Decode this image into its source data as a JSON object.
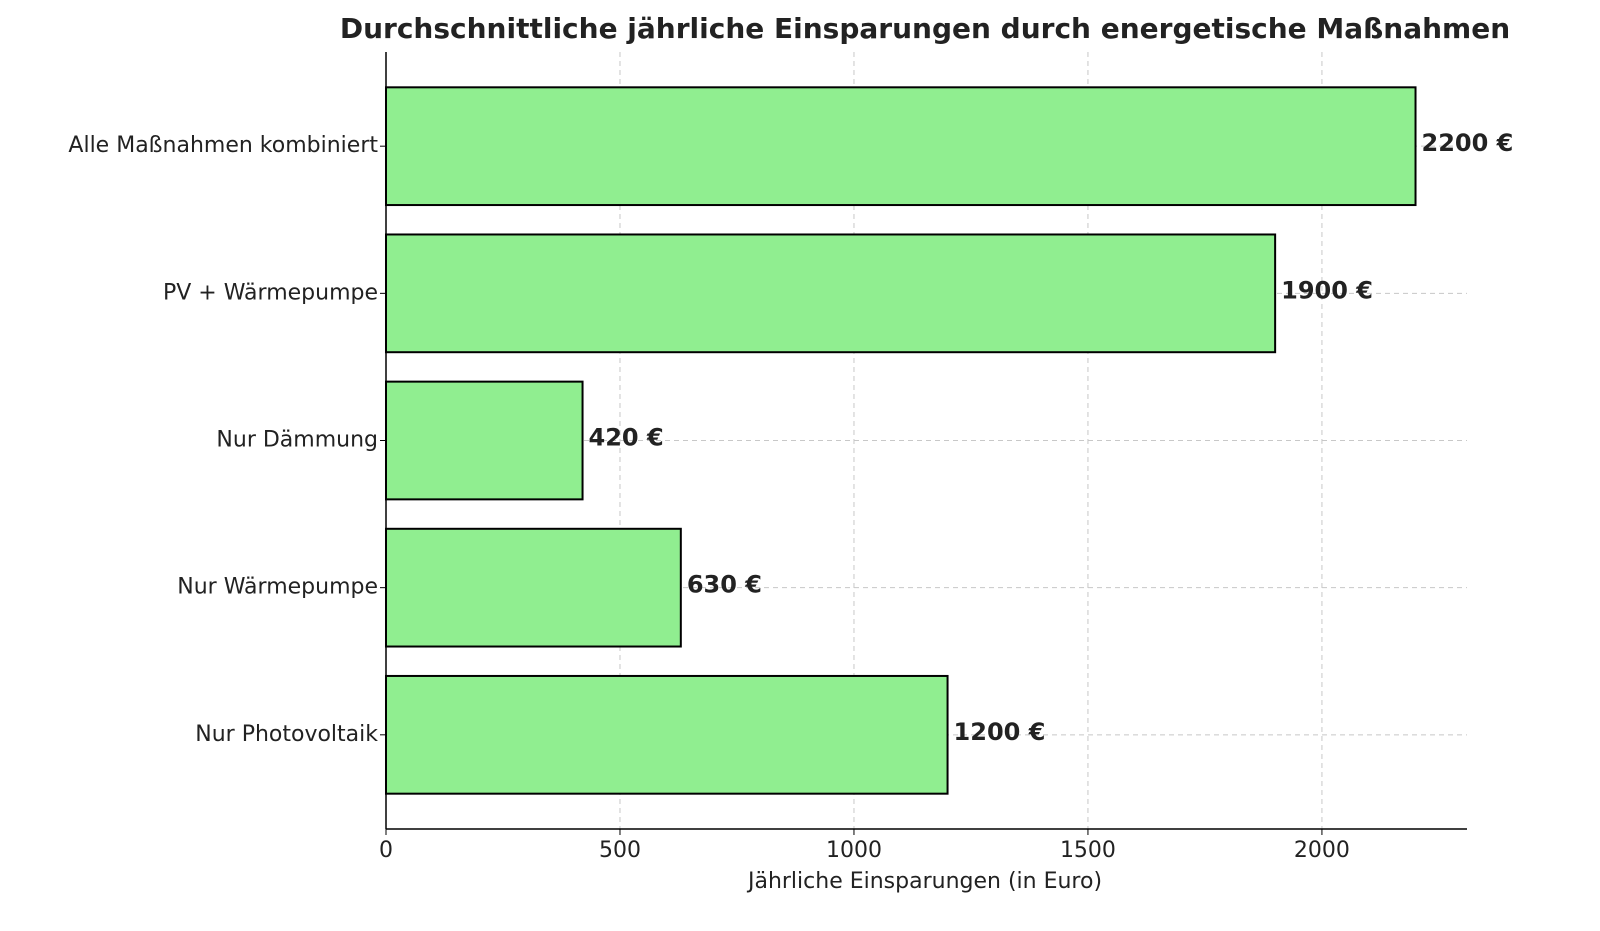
{
  "chart_data": {
    "type": "bar",
    "orientation": "horizontal",
    "title": "Durchschnittliche jährliche Einsparungen durch energetische Maßnahmen",
    "xlabel": "Jährliche Einsparungen (in Euro)",
    "categories": [
      "Nur Photovoltaik",
      "Nur Wärmepumpe",
      "Nur Dämmung",
      "PV + Wärmepumpe",
      "Alle Maßnahmen kombiniert"
    ],
    "values": [
      1200,
      630,
      420,
      1900,
      2200
    ],
    "value_labels": [
      "1200 €",
      "630 €",
      "420 €",
      "1900 €",
      "2200 €"
    ],
    "color": "#90ee90",
    "edgecolor": "#000000",
    "xlim": [
      0,
      2310
    ],
    "xticks": [
      0,
      500,
      1000,
      1500,
      2000
    ],
    "grid": true
  }
}
